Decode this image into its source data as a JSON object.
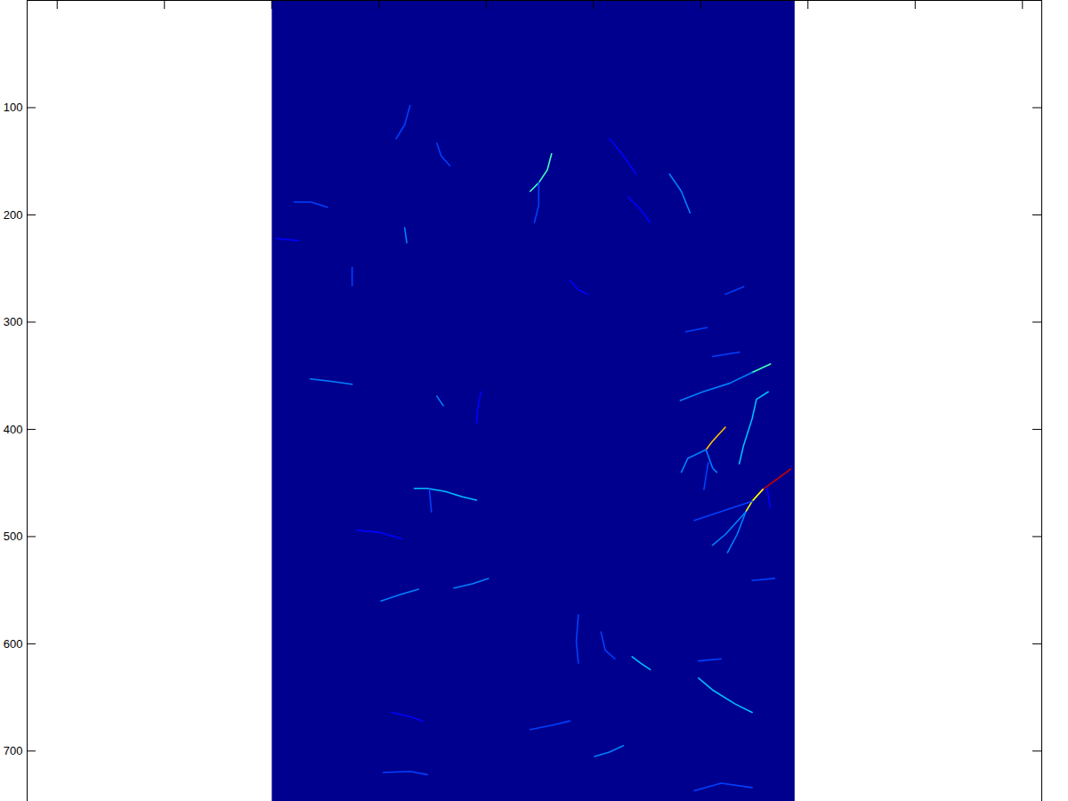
{
  "chart_data": {
    "type": "heatmap",
    "xlim": [
      -228,
      718
    ],
    "ylim": [
      747,
      0
    ],
    "xticks": [
      -200,
      -100,
      0,
      100,
      200,
      300,
      400,
      500,
      600,
      700
    ],
    "yticks": [
      100,
      200,
      300,
      400,
      500,
      600,
      700
    ],
    "tick_labels": "y",
    "zlim": [
      0,
      1
    ],
    "background": 0,
    "image_extent": {
      "x": [
        0.5,
        488
      ],
      "y": [
        0.5,
        760
      ]
    },
    "streams": [
      {
        "value": 0.9,
        "points": [
          [
            484,
            437
          ],
          [
            469,
            448
          ],
          [
            458,
            456
          ]
        ]
      },
      {
        "value": 0.6,
        "points": [
          [
            458,
            456
          ],
          [
            448,
            467
          ],
          [
            442,
            477
          ]
        ]
      },
      {
        "value": 0.3,
        "points": [
          [
            442,
            477
          ],
          [
            423,
            498
          ],
          [
            411,
            508
          ]
        ]
      },
      {
        "value": 0.3,
        "points": [
          [
            442,
            477
          ],
          [
            434,
            498
          ],
          [
            425,
            515
          ]
        ]
      },
      {
        "value": 0.25,
        "points": [
          [
            448,
            467
          ],
          [
            394,
            485
          ]
        ]
      },
      {
        "value": 0.2,
        "points": [
          [
            462,
            455
          ],
          [
            465,
            473
          ]
        ]
      },
      {
        "value": 0.65,
        "points": [
          [
            423,
            398
          ],
          [
            411,
            411
          ],
          [
            405,
            419
          ]
        ]
      },
      {
        "value": 0.3,
        "points": [
          [
            405,
            419
          ],
          [
            388,
            427
          ],
          [
            382,
            440
          ]
        ]
      },
      {
        "value": 0.3,
        "points": [
          [
            405,
            419
          ],
          [
            411,
            436
          ],
          [
            415,
            440
          ]
        ]
      },
      {
        "value": 0.25,
        "points": [
          [
            407,
            431
          ],
          [
            403,
            456
          ]
        ]
      },
      {
        "value": 0.45,
        "points": [
          [
            465,
            339
          ],
          [
            448,
            347
          ]
        ]
      },
      {
        "value": 0.3,
        "points": [
          [
            448,
            347
          ],
          [
            427,
            357
          ],
          [
            402,
            365
          ],
          [
            381,
            373
          ]
        ]
      },
      {
        "value": 0.35,
        "points": [
          [
            463,
            365
          ],
          [
            452,
            372
          ],
          [
            448,
            390
          ],
          [
            440,
            415
          ],
          [
            436,
            432
          ]
        ]
      },
      {
        "value": 0.25,
        "points": [
          [
            436,
            328
          ],
          [
            411,
            332
          ]
        ]
      },
      {
        "value": 0.25,
        "points": [
          [
            406,
            305
          ],
          [
            386,
            309
          ]
        ]
      },
      {
        "value": 0.45,
        "points": [
          [
            261,
            143
          ],
          [
            257,
            158
          ],
          [
            249,
            170
          ],
          [
            241,
            178
          ]
        ]
      },
      {
        "value": 0.25,
        "points": [
          [
            249,
            170
          ],
          [
            249,
            191
          ],
          [
            245,
            207
          ]
        ]
      },
      {
        "value": 0.3,
        "points": [
          [
            371,
            162
          ],
          [
            382,
            178
          ],
          [
            390,
            198
          ]
        ]
      },
      {
        "value": 0.35,
        "points": [
          [
            133,
            455
          ],
          [
            145,
            455
          ],
          [
            162,
            458
          ],
          [
            178,
            463
          ],
          [
            191,
            466
          ]
        ]
      },
      {
        "value": 0.25,
        "points": [
          [
            147,
            456
          ],
          [
            149,
            477
          ]
        ]
      },
      {
        "value": 0.3,
        "points": [
          [
            36,
            353
          ],
          [
            54,
            355
          ],
          [
            75,
            358
          ]
        ]
      },
      {
        "value": 0.25,
        "points": [
          [
            21,
            188
          ],
          [
            37,
            188
          ],
          [
            52,
            193
          ]
        ]
      },
      {
        "value": 0.25,
        "points": [
          [
            129,
            98
          ],
          [
            124,
            116
          ],
          [
            116,
            129
          ]
        ]
      },
      {
        "value": 0.3,
        "points": [
          [
            124,
            212
          ],
          [
            126,
            226
          ]
        ]
      },
      {
        "value": 0.35,
        "points": [
          [
            336,
            612
          ],
          [
            344,
            618
          ],
          [
            353,
            624
          ]
        ]
      },
      {
        "value": 0.35,
        "points": [
          [
            398,
            632
          ],
          [
            411,
            643
          ],
          [
            432,
            656
          ],
          [
            448,
            664
          ]
        ]
      },
      {
        "value": 0.3,
        "points": [
          [
            301,
            705
          ],
          [
            315,
            701
          ],
          [
            328,
            695
          ]
        ]
      },
      {
        "value": 0.3,
        "points": [
          [
            102,
            560
          ],
          [
            120,
            554
          ],
          [
            137,
            549
          ]
        ]
      },
      {
        "value": 0.25,
        "points": [
          [
            286,
            573
          ],
          [
            284,
            598
          ],
          [
            286,
            618
          ]
        ]
      },
      {
        "value": 0.25,
        "points": [
          [
            307,
            589
          ],
          [
            311,
            606
          ],
          [
            320,
            614
          ]
        ]
      },
      {
        "value": 0.3,
        "points": [
          [
            154,
            369
          ],
          [
            160,
            378
          ]
        ]
      },
      {
        "value": 0.25,
        "points": [
          [
            241,
            680
          ],
          [
            261,
            676
          ],
          [
            278,
            672
          ]
        ]
      },
      {
        "value": 0.25,
        "points": [
          [
            394,
            737
          ],
          [
            419,
            730
          ],
          [
            448,
            734
          ]
        ]
      },
      {
        "value": 0.3,
        "points": [
          [
            170,
            548
          ],
          [
            187,
            544
          ],
          [
            202,
            539
          ]
        ]
      },
      {
        "value": 0.2,
        "points": [
          [
            79,
            494
          ],
          [
            100,
            496
          ],
          [
            121,
            502
          ]
        ]
      },
      {
        "value": 0.2,
        "points": [
          [
            315,
            129
          ],
          [
            328,
            145
          ],
          [
            340,
            162
          ]
        ]
      },
      {
        "value": 0.25,
        "points": [
          [
            154,
            133
          ],
          [
            158,
            145
          ],
          [
            166,
            154
          ]
        ]
      },
      {
        "value": 0.2,
        "points": [
          [
            278,
            261
          ],
          [
            286,
            270
          ],
          [
            295,
            274
          ]
        ]
      },
      {
        "value": 0.2,
        "points": [
          [
            332,
            183
          ],
          [
            344,
            195
          ],
          [
            353,
            207
          ]
        ]
      },
      {
        "value": 0.25,
        "points": [
          [
            448,
            541
          ],
          [
            469,
            539
          ]
        ]
      },
      {
        "value": 0.25,
        "points": [
          [
            75,
            249
          ],
          [
            75,
            266
          ]
        ]
      },
      {
        "value": 0.2,
        "points": [
          [
            4,
            222
          ],
          [
            25,
            224
          ]
        ]
      },
      {
        "value": 0.25,
        "points": [
          [
            104,
            720
          ],
          [
            129,
            719
          ],
          [
            145,
            722
          ]
        ]
      },
      {
        "value": 0.25,
        "points": [
          [
            398,
            616
          ],
          [
            419,
            614
          ]
        ]
      },
      {
        "value": 0.2,
        "points": [
          [
            195,
            365
          ],
          [
            192,
            382
          ],
          [
            191,
            394
          ]
        ]
      },
      {
        "value": 0.2,
        "points": [
          [
            112,
            664
          ],
          [
            129,
            668
          ],
          [
            141,
            672
          ]
        ]
      },
      {
        "value": 0.25,
        "points": [
          [
            440,
            267
          ],
          [
            423,
            274
          ]
        ]
      }
    ]
  }
}
